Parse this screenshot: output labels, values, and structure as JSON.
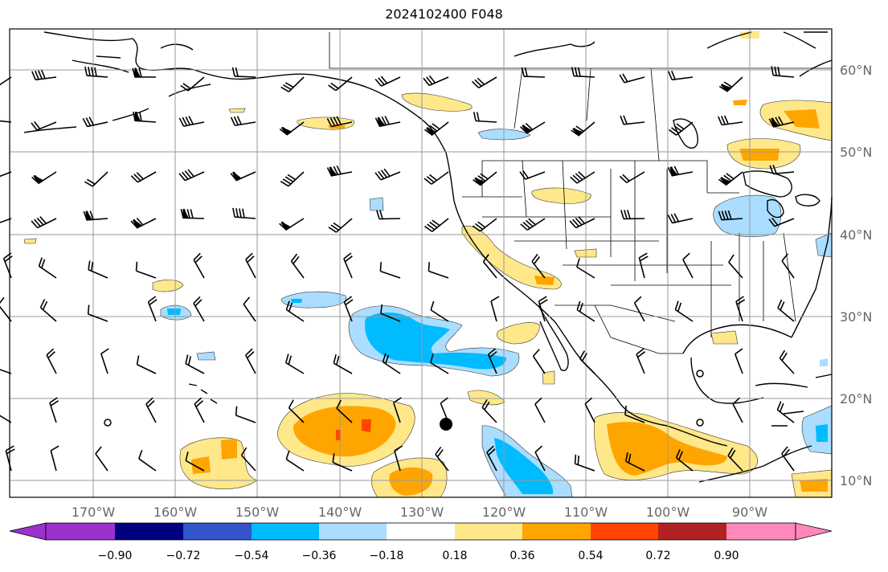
{
  "title": "2024102400 F048",
  "lon_labels": [
    "170°W",
    "160°W",
    "150°W",
    "140°W",
    "130°W",
    "120°W",
    "110°W",
    "100°W",
    "90°W"
  ],
  "lat_labels": [
    "60°N",
    "50°N",
    "40°N",
    "30°N",
    "20°N",
    "10°N"
  ],
  "colorbar": {
    "tick_labels": [
      "−0.90",
      "−0.72",
      "−0.54",
      "−0.36",
      "−0.18",
      "0.18",
      "0.36",
      "0.54",
      "0.72",
      "0.90"
    ],
    "colors": [
      "#9933cc",
      "#000080",
      "#3355cc",
      "#00bbff",
      "#aaddff",
      "#ffffff",
      "#ffe88a",
      "#ffa500",
      "#ff4500",
      "#b22222",
      "#ff88bb"
    ]
  },
  "field_colors": {
    "pos_036": "#ffe88a",
    "pos_054": "#ffa500",
    "pos_072": "#ff4500",
    "neg_036": "#aaddff",
    "neg_054": "#00bbff"
  }
}
